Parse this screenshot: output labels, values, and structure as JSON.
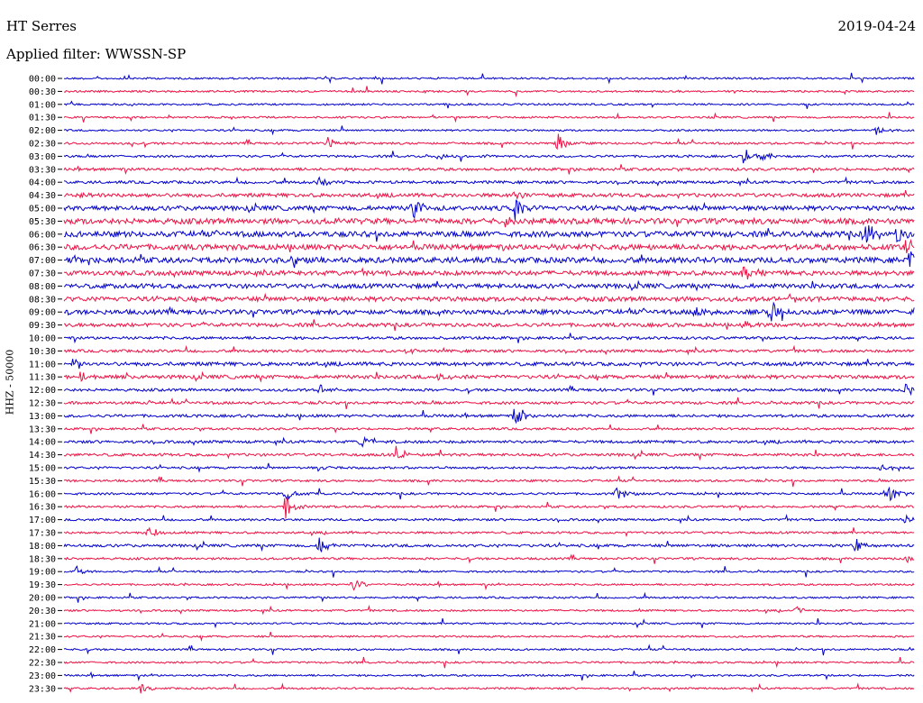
{
  "header": {
    "station": "HT Serres",
    "date": "2019-04-24",
    "filter_label": "Applied filter: WWSSN-SP"
  },
  "chart_data": {
    "type": "line",
    "title": "HT Serres",
    "subtitle": "Applied filter: WWSSN-SP",
    "ylabel": "HHZ - 50000",
    "xlabel": "",
    "grid": false,
    "legend": "none",
    "colors": [
      "#0000cc",
      "#ee1144"
    ],
    "rows": [
      {
        "label": "00:00",
        "amp": 1,
        "events": []
      },
      {
        "label": "00:30",
        "amp": 1,
        "events": []
      },
      {
        "label": "01:00",
        "amp": 1,
        "events": []
      },
      {
        "label": "01:30",
        "amp": 1,
        "events": []
      },
      {
        "label": "02:00",
        "amp": 1,
        "events": [
          {
            "t": 0.955,
            "a": 5
          }
        ]
      },
      {
        "label": "02:30",
        "amp": 1.2,
        "events": [
          {
            "t": 0.31,
            "a": 6
          },
          {
            "t": 0.58,
            "a": 12
          }
        ]
      },
      {
        "label": "03:00",
        "amp": 1.2,
        "events": [
          {
            "t": 0.44,
            "a": 4
          },
          {
            "t": 0.8,
            "a": 14
          },
          {
            "t": 0.82,
            "a": 6
          }
        ]
      },
      {
        "label": "03:30",
        "amp": 1.5,
        "events": []
      },
      {
        "label": "04:00",
        "amp": 1.5,
        "events": [
          {
            "t": 0.3,
            "a": 7
          }
        ]
      },
      {
        "label": "04:30",
        "amp": 2,
        "events": [
          {
            "t": 0.02,
            "a": 5
          },
          {
            "t": 0.53,
            "a": 6
          }
        ]
      },
      {
        "label": "05:00",
        "amp": 2.5,
        "events": [
          {
            "t": 0.41,
            "a": 12
          },
          {
            "t": 0.53,
            "a": 14
          }
        ]
      },
      {
        "label": "05:30",
        "amp": 3,
        "events": [
          {
            "t": 0.32,
            "a": 4
          },
          {
            "t": 0.52,
            "a": 8
          }
        ]
      },
      {
        "label": "06:00",
        "amp": 3,
        "events": [
          {
            "t": 0.94,
            "a": 16
          },
          {
            "t": 0.98,
            "a": 12
          }
        ]
      },
      {
        "label": "06:30",
        "amp": 3,
        "events": [
          {
            "t": 0.17,
            "a": 5
          },
          {
            "t": 0.99,
            "a": 14
          }
        ]
      },
      {
        "label": "07:00",
        "amp": 3,
        "events": [
          {
            "t": 0.27,
            "a": 8
          },
          {
            "t": 0.995,
            "a": 12
          }
        ]
      },
      {
        "label": "07:30",
        "amp": 2.5,
        "events": [
          {
            "t": 0.8,
            "a": 12
          }
        ]
      },
      {
        "label": "08:00",
        "amp": 2.5,
        "events": []
      },
      {
        "label": "08:30",
        "amp": 2.5,
        "events": [
          {
            "t": 0.85,
            "a": 5
          }
        ]
      },
      {
        "label": "09:00",
        "amp": 2.5,
        "events": [
          {
            "t": 0.74,
            "a": 10
          },
          {
            "t": 0.83,
            "a": 14
          },
          {
            "t": 1.0,
            "a": 12
          }
        ]
      },
      {
        "label": "09:30",
        "amp": 2,
        "events": [
          {
            "t": 0.8,
            "a": 6
          }
        ]
      },
      {
        "label": "10:00",
        "amp": 1.5,
        "events": []
      },
      {
        "label": "10:30",
        "amp": 1.5,
        "events": [
          {
            "t": 0.4,
            "a": 5
          }
        ]
      },
      {
        "label": "11:00",
        "amp": 2,
        "events": [
          {
            "t": 0.01,
            "a": 10
          }
        ]
      },
      {
        "label": "11:30",
        "amp": 2,
        "events": [
          {
            "t": 0.02,
            "a": 8
          },
          {
            "t": 0.44,
            "a": 6
          }
        ]
      },
      {
        "label": "12:00",
        "amp": 1.5,
        "events": [
          {
            "t": 0.3,
            "a": 6
          },
          {
            "t": 0.99,
            "a": 8
          }
        ]
      },
      {
        "label": "12:30",
        "amp": 1.5,
        "events": []
      },
      {
        "label": "13:00",
        "amp": 1.5,
        "events": [
          {
            "t": 0.53,
            "a": 16
          }
        ]
      },
      {
        "label": "13:30",
        "amp": 1.2,
        "events": []
      },
      {
        "label": "14:00",
        "amp": 1.5,
        "events": [
          {
            "t": 0.35,
            "a": 8
          }
        ]
      },
      {
        "label": "14:30",
        "amp": 1.5,
        "events": [
          {
            "t": 0.39,
            "a": 12
          }
        ]
      },
      {
        "label": "15:00",
        "amp": 1.2,
        "events": [
          {
            "t": 0.3,
            "a": 5
          },
          {
            "t": 0.96,
            "a": 6
          }
        ]
      },
      {
        "label": "15:30",
        "amp": 1.2,
        "events": []
      },
      {
        "label": "16:00",
        "amp": 1.2,
        "events": [
          {
            "t": 0.26,
            "a": 8
          },
          {
            "t": 0.65,
            "a": 8
          },
          {
            "t": 0.97,
            "a": 12
          }
        ]
      },
      {
        "label": "16:30",
        "amp": 1.2,
        "events": [
          {
            "t": 0.26,
            "a": 14
          }
        ]
      },
      {
        "label": "17:00",
        "amp": 1.2,
        "events": [
          {
            "t": 0.99,
            "a": 10
          }
        ]
      },
      {
        "label": "17:30",
        "amp": 1.2,
        "events": [
          {
            "t": 0.1,
            "a": 8
          }
        ]
      },
      {
        "label": "18:00",
        "amp": 1.5,
        "events": [
          {
            "t": 0.3,
            "a": 9
          },
          {
            "t": 0.93,
            "a": 8
          }
        ]
      },
      {
        "label": "18:30",
        "amp": 1.2,
        "events": [
          {
            "t": 0.99,
            "a": 5
          }
        ]
      },
      {
        "label": "19:00",
        "amp": 1,
        "events": [
          {
            "t": 0.015,
            "a": 6
          }
        ]
      },
      {
        "label": "19:30",
        "amp": 1,
        "events": [
          {
            "t": 0.34,
            "a": 9
          }
        ]
      },
      {
        "label": "20:00",
        "amp": 1,
        "events": []
      },
      {
        "label": "20:30",
        "amp": 1,
        "events": [
          {
            "t": 0.86,
            "a": 5
          }
        ]
      },
      {
        "label": "21:00",
        "amp": 1,
        "events": []
      },
      {
        "label": "21:30",
        "amp": 1,
        "events": []
      },
      {
        "label": "22:00",
        "amp": 1,
        "events": []
      },
      {
        "label": "22:30",
        "amp": 1,
        "events": []
      },
      {
        "label": "23:00",
        "amp": 1,
        "events": []
      },
      {
        "label": "23:30",
        "amp": 1,
        "events": [
          {
            "t": 0.09,
            "a": 5
          }
        ]
      }
    ]
  }
}
